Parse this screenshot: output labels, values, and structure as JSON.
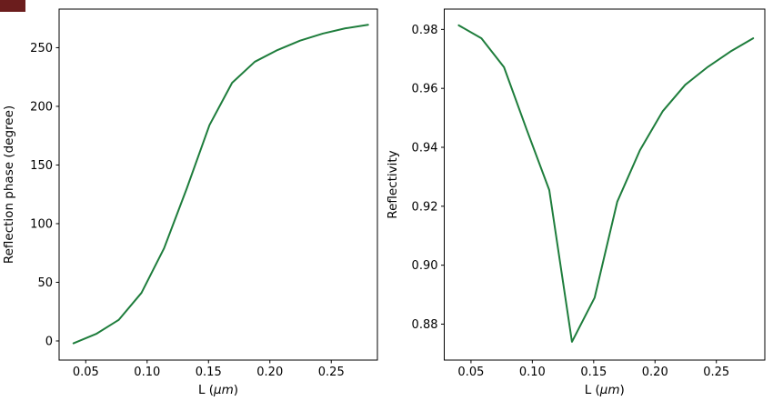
{
  "figure": {
    "background": "#ffffff",
    "spine_color": "#000000",
    "tick_color": "#000000"
  },
  "corner_marker": {
    "color": "#6b1d1d"
  },
  "chart_data": [
    {
      "type": "line",
      "name": "reflection-phase-plot",
      "title": "",
      "xlabel": "L (μm)",
      "xlabel_parts": [
        {
          "t": "L (",
          "i": false
        },
        {
          "t": "μm",
          "i": true
        },
        {
          "t": ")",
          "i": false
        }
      ],
      "ylabel": "Reflection phase (degree)",
      "line_color": "#1e7d3c",
      "grid": false,
      "legend": null,
      "xlim": [
        0.0283,
        0.2876
      ],
      "ylim": [
        -16.3,
        282.9
      ],
      "xticks": [
        0.05,
        0.1,
        0.15,
        0.2,
        0.25
      ],
      "xtick_labels": [
        "0.05",
        "0.10",
        "0.15",
        "0.20",
        "0.25"
      ],
      "yticks": [
        0,
        50,
        100,
        150,
        200,
        250
      ],
      "ytick_labels": [
        "0",
        "50",
        "100",
        "150",
        "200",
        "250"
      ],
      "x": [
        0.04,
        0.0585,
        0.0769,
        0.0954,
        0.1138,
        0.1323,
        0.1508,
        0.1692,
        0.1877,
        0.2062,
        0.2246,
        0.2431,
        0.2615,
        0.28
      ],
      "y": [
        -2,
        6,
        18,
        41,
        79,
        130,
        184,
        220,
        238,
        248,
        256,
        262,
        266.5,
        269.5
      ]
    },
    {
      "type": "line",
      "name": "reflectivity-plot",
      "title": "",
      "xlabel": "L (μm)",
      "xlabel_parts": [
        {
          "t": "L (",
          "i": false
        },
        {
          "t": "μm",
          "i": true
        },
        {
          "t": ")",
          "i": false
        }
      ],
      "ylabel": "Reflectivity",
      "line_color": "#1e7d3c",
      "grid": false,
      "legend": null,
      "xlim": [
        0.0282,
        0.2895
      ],
      "ylim": [
        0.8678,
        0.9869
      ],
      "xticks": [
        0.05,
        0.1,
        0.15,
        0.2,
        0.25
      ],
      "xtick_labels": [
        "0.05",
        "0.10",
        "0.15",
        "0.20",
        "0.25"
      ],
      "yticks": [
        0.88,
        0.9,
        0.92,
        0.94,
        0.96,
        0.98
      ],
      "ytick_labels": [
        "0.88",
        "0.90",
        "0.92",
        "0.94",
        "0.96",
        "0.98"
      ],
      "x": [
        0.04,
        0.0585,
        0.0769,
        0.0954,
        0.1138,
        0.1323,
        0.1508,
        0.1692,
        0.1877,
        0.2062,
        0.2246,
        0.2431,
        0.2615,
        0.28
      ],
      "y": [
        0.9814,
        0.977,
        0.9672,
        0.946,
        0.9255,
        0.874,
        0.889,
        0.9215,
        0.939,
        0.9522,
        0.9612,
        0.9673,
        0.9725,
        0.977
      ]
    }
  ]
}
